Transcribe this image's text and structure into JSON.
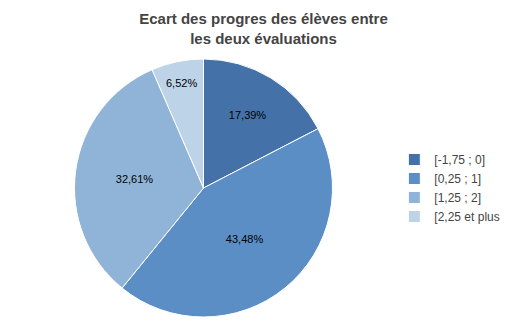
{
  "chart_data": {
    "type": "pie",
    "title": "Ecart des progres des élèves entre\nles deux évaluations",
    "categories": [
      "[-1,75 ; 0]",
      "[0,25 ; 1]",
      "[1,25 ; 2]",
      "[2,25 et plus"
    ],
    "values": [
      17.39,
      43.48,
      32.61,
      6.52
    ],
    "value_labels": [
      "17,39%",
      "43,48%",
      "32,61%",
      "6,52%"
    ],
    "colors": [
      "#4472A8",
      "#5B8EC5",
      "#8FB4D8",
      "#BDD3E8"
    ],
    "data_labels": true,
    "legend": "right"
  }
}
